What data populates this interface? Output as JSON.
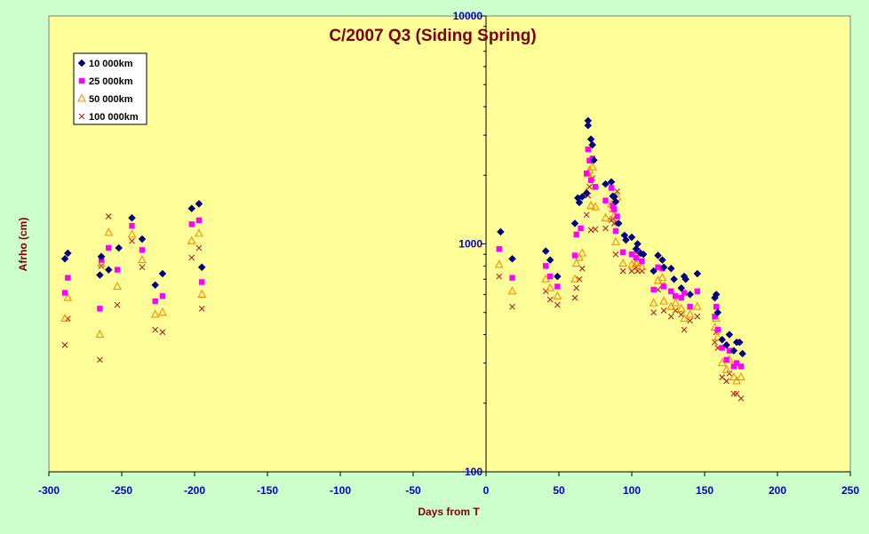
{
  "chart_data": {
    "type": "scatter",
    "title": "C/2007 Q3 (Siding Spring)",
    "xlabel": "Days from T",
    "ylabel": "Afrho (cm)",
    "xlim": [
      -300,
      250
    ],
    "ylim": [
      100,
      10000
    ],
    "y_scale": "log",
    "x_ticks": [
      -300,
      -250,
      -200,
      -150,
      -100,
      -50,
      0,
      50,
      100,
      150,
      200,
      250
    ],
    "y_ticks": [
      100,
      1000,
      10000
    ],
    "legend_position": "top-left",
    "grid": false,
    "series": [
      {
        "name": "10 000km",
        "marker": "diamond",
        "color": "#000080",
        "points": [
          [
            -289,
            860
          ],
          [
            -287,
            910
          ],
          [
            -265,
            730
          ],
          [
            -264,
            880
          ],
          [
            -259,
            770
          ],
          [
            -252,
            960
          ],
          [
            -243,
            1300
          ],
          [
            -236,
            1050
          ],
          [
            -227,
            660
          ],
          [
            -222,
            740
          ],
          [
            -202,
            1430
          ],
          [
            -197,
            1500
          ],
          [
            -195,
            790
          ],
          [
            10,
            1130
          ],
          [
            18,
            860
          ],
          [
            41,
            930
          ],
          [
            44,
            850
          ],
          [
            49,
            720
          ],
          [
            61,
            1230
          ],
          [
            63,
            1590
          ],
          [
            64,
            1520
          ],
          [
            66,
            1610
          ],
          [
            69,
            1670
          ],
          [
            70,
            3470
          ],
          [
            70,
            3310
          ],
          [
            72,
            2880
          ],
          [
            73,
            2720
          ],
          [
            74,
            2330
          ],
          [
            82,
            1830
          ],
          [
            86,
            1870
          ],
          [
            87,
            1620
          ],
          [
            88,
            1610
          ],
          [
            89,
            1530
          ],
          [
            91,
            1230
          ],
          [
            95,
            1090
          ],
          [
            96,
            1040
          ],
          [
            100,
            1070
          ],
          [
            103,
            950
          ],
          [
            104,
            1000
          ],
          [
            106,
            910
          ],
          [
            108,
            900
          ],
          [
            115,
            760
          ],
          [
            118,
            890
          ],
          [
            121,
            850
          ],
          [
            122,
            790
          ],
          [
            127,
            780
          ],
          [
            129,
            700
          ],
          [
            134,
            640
          ],
          [
            136,
            720
          ],
          [
            137,
            700
          ],
          [
            140,
            600
          ],
          [
            145,
            740
          ],
          [
            157,
            580
          ],
          [
            158,
            600
          ],
          [
            159,
            500
          ],
          [
            162,
            380
          ],
          [
            165,
            360
          ],
          [
            167,
            400
          ],
          [
            170,
            340
          ],
          [
            172,
            370
          ],
          [
            174,
            370
          ],
          [
            176,
            330
          ]
        ]
      },
      {
        "name": "25 000km",
        "marker": "square",
        "color": "#ff00ff",
        "points": [
          [
            -289,
            610
          ],
          [
            -287,
            710
          ],
          [
            -265,
            520
          ],
          [
            -264,
            850
          ],
          [
            -259,
            960
          ],
          [
            -253,
            770
          ],
          [
            -243,
            1200
          ],
          [
            -236,
            940
          ],
          [
            -227,
            560
          ],
          [
            -222,
            590
          ],
          [
            -202,
            1220
          ],
          [
            -197,
            1270
          ],
          [
            -195,
            680
          ],
          [
            9,
            950
          ],
          [
            18,
            710
          ],
          [
            41,
            800
          ],
          [
            44,
            720
          ],
          [
            49,
            650
          ],
          [
            61,
            890
          ],
          [
            62,
            1100
          ],
          [
            65,
            1170
          ],
          [
            69,
            2040
          ],
          [
            70,
            2600
          ],
          [
            71,
            2320
          ],
          [
            72,
            1900
          ],
          [
            73,
            2370
          ],
          [
            75,
            1780
          ],
          [
            82,
            1550
          ],
          [
            86,
            1760
          ],
          [
            87,
            1470
          ],
          [
            88,
            1420
          ],
          [
            89,
            1140
          ],
          [
            90,
            1320
          ],
          [
            94,
            920
          ],
          [
            100,
            900
          ],
          [
            103,
            870
          ],
          [
            104,
            930
          ],
          [
            107,
            840
          ],
          [
            115,
            630
          ],
          [
            118,
            790
          ],
          [
            121,
            780
          ],
          [
            122,
            650
          ],
          [
            127,
            620
          ],
          [
            130,
            590
          ],
          [
            134,
            580
          ],
          [
            136,
            610
          ],
          [
            140,
            530
          ],
          [
            145,
            620
          ],
          [
            157,
            480
          ],
          [
            158,
            530
          ],
          [
            159,
            420
          ],
          [
            162,
            350
          ],
          [
            165,
            310
          ],
          [
            167,
            340
          ],
          [
            170,
            290
          ],
          [
            172,
            300
          ],
          [
            175,
            290
          ]
        ]
      },
      {
        "name": "50 000km",
        "marker": "triangle",
        "color": "#ff8c00",
        "points": [
          [
            -289,
            470
          ],
          [
            -287,
            580
          ],
          [
            -265,
            400
          ],
          [
            -264,
            820
          ],
          [
            -259,
            1120
          ],
          [
            -253,
            650
          ],
          [
            -243,
            1100
          ],
          [
            -236,
            850
          ],
          [
            -227,
            490
          ],
          [
            -222,
            500
          ],
          [
            -202,
            1030
          ],
          [
            -197,
            1110
          ],
          [
            -195,
            600
          ],
          [
            9,
            810
          ],
          [
            18,
            620
          ],
          [
            41,
            700
          ],
          [
            44,
            640
          ],
          [
            49,
            590
          ],
          [
            61,
            700
          ],
          [
            62,
            820
          ],
          [
            64,
            870
          ],
          [
            66,
            910
          ],
          [
            69,
            1690
          ],
          [
            70,
            2030
          ],
          [
            71,
            2100
          ],
          [
            72,
            1470
          ],
          [
            73,
            2170
          ],
          [
            75,
            1450
          ],
          [
            82,
            1300
          ],
          [
            86,
            1490
          ],
          [
            87,
            1420
          ],
          [
            88,
            1330
          ],
          [
            89,
            1020
          ],
          [
            90,
            1600
          ],
          [
            94,
            820
          ],
          [
            100,
            810
          ],
          [
            103,
            820
          ],
          [
            104,
            830
          ],
          [
            107,
            790
          ],
          [
            115,
            550
          ],
          [
            118,
            690
          ],
          [
            121,
            710
          ],
          [
            122,
            560
          ],
          [
            127,
            530
          ],
          [
            130,
            550
          ],
          [
            134,
            520
          ],
          [
            136,
            470
          ],
          [
            140,
            490
          ],
          [
            145,
            530
          ],
          [
            157,
            430
          ],
          [
            158,
            470
          ],
          [
            159,
            390
          ],
          [
            162,
            300
          ],
          [
            165,
            280
          ],
          [
            167,
            310
          ],
          [
            170,
            260
          ],
          [
            172,
            250
          ],
          [
            175,
            260
          ]
        ]
      },
      {
        "name": "100 000km",
        "marker": "cross",
        "color": "#b22222",
        "points": [
          [
            -289,
            360
          ],
          [
            -287,
            470
          ],
          [
            -265,
            310
          ],
          [
            -264,
            800
          ],
          [
            -259,
            1320
          ],
          [
            -253,
            540
          ],
          [
            -243,
            1030
          ],
          [
            -236,
            790
          ],
          [
            -227,
            420
          ],
          [
            -222,
            410
          ],
          [
            -202,
            870
          ],
          [
            -197,
            960
          ],
          [
            -195,
            520
          ],
          [
            9,
            720
          ],
          [
            18,
            530
          ],
          [
            41,
            620
          ],
          [
            44,
            570
          ],
          [
            49,
            540
          ],
          [
            61,
            580
          ],
          [
            62,
            640
          ],
          [
            64,
            700
          ],
          [
            66,
            780
          ],
          [
            69,
            1340
          ],
          [
            70,
            1630
          ],
          [
            71,
            1780
          ],
          [
            72,
            1150
          ],
          [
            73,
            1940
          ],
          [
            75,
            1160
          ],
          [
            82,
            1170
          ],
          [
            86,
            1270
          ],
          [
            87,
            1290
          ],
          [
            88,
            1230
          ],
          [
            89,
            900
          ],
          [
            90,
            1700
          ],
          [
            94,
            760
          ],
          [
            100,
            760
          ],
          [
            103,
            790
          ],
          [
            104,
            760
          ],
          [
            107,
            760
          ],
          [
            115,
            500
          ],
          [
            118,
            630
          ],
          [
            121,
            660
          ],
          [
            122,
            510
          ],
          [
            127,
            480
          ],
          [
            130,
            510
          ],
          [
            134,
            490
          ],
          [
            136,
            420
          ],
          [
            140,
            460
          ],
          [
            145,
            480
          ],
          [
            157,
            370
          ],
          [
            158,
            410
          ],
          [
            159,
            350
          ],
          [
            162,
            260
          ],
          [
            165,
            250
          ],
          [
            167,
            270
          ],
          [
            170,
            220
          ],
          [
            172,
            220
          ],
          [
            175,
            210
          ]
        ]
      }
    ]
  }
}
